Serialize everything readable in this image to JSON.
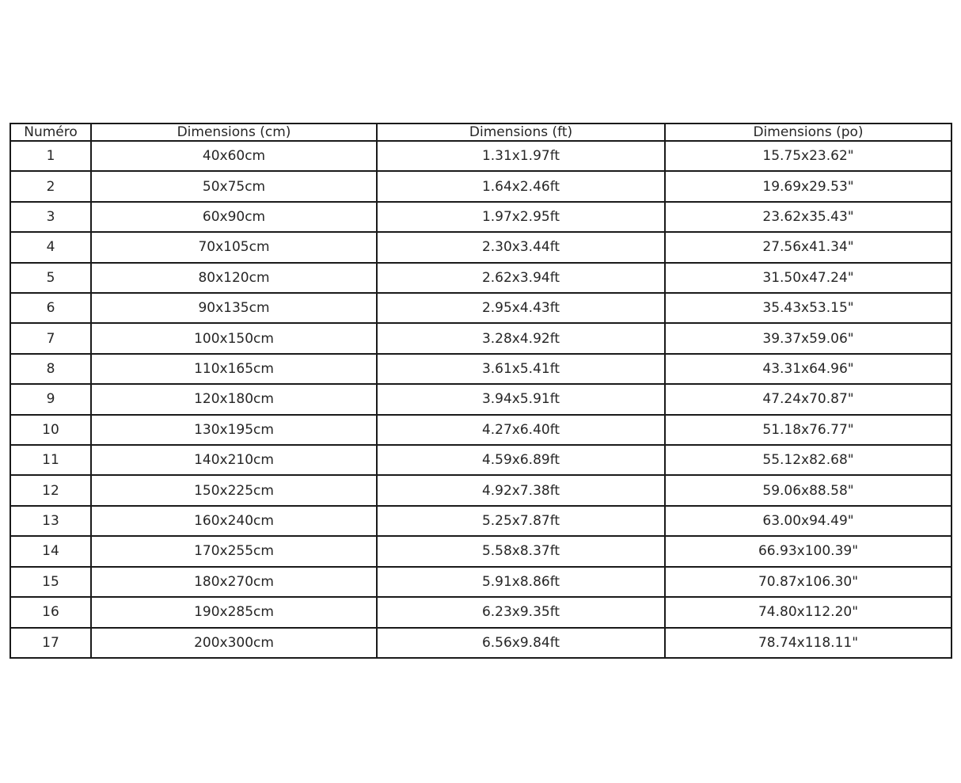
{
  "page": {
    "background": "#ffffff"
  },
  "chart_data": {
    "type": "table",
    "title": "",
    "columns": [
      "Numéro",
      "Dimensions (cm)",
      "Dimensions (ft)",
      "Dimensions (po)"
    ],
    "rows": [
      [
        "1",
        "40x60cm",
        "1.31x1.97ft",
        "15.75x23.62\""
      ],
      [
        "2",
        "50x75cm",
        "1.64x2.46ft",
        "19.69x29.53\""
      ],
      [
        "3",
        "60x90cm",
        "1.97x2.95ft",
        "23.62x35.43\""
      ],
      [
        "4",
        "70x105cm",
        "2.30x3.44ft",
        "27.56x41.34\""
      ],
      [
        "5",
        "80x120cm",
        "2.62x3.94ft",
        "31.50x47.24\""
      ],
      [
        "6",
        "90x135cm",
        "2.95x4.43ft",
        "35.43x53.15\""
      ],
      [
        "7",
        "100x150cm",
        "3.28x4.92ft",
        "39.37x59.06\""
      ],
      [
        "8",
        "110x165cm",
        "3.61x5.41ft",
        "43.31x64.96\""
      ],
      [
        "9",
        "120x180cm",
        "3.94x5.91ft",
        "47.24x70.87\""
      ],
      [
        "10",
        "130x195cm",
        "4.27x6.40ft",
        "51.18x76.77\""
      ],
      [
        "11",
        "140x210cm",
        "4.59x6.89ft",
        "55.12x82.68\""
      ],
      [
        "12",
        "150x225cm",
        "4.92x7.38ft",
        "59.06x88.58\""
      ],
      [
        "13",
        "160x240cm",
        "5.25x7.87ft",
        "63.00x94.49\""
      ],
      [
        "14",
        "170x255cm",
        "5.58x8.37ft",
        "66.93x100.39\""
      ],
      [
        "15",
        "180x270cm",
        "5.91x8.86ft",
        "70.87x106.30\""
      ],
      [
        "16",
        "190x285cm",
        "6.23x9.35ft",
        "74.80x112.20\""
      ],
      [
        "17",
        "200x300cm",
        "6.56x9.84ft",
        "78.74x118.11\""
      ]
    ],
    "layout": {
      "grid": true,
      "border_color": "#1a1a1a",
      "text_color": "#262626",
      "header_bold": false
    }
  }
}
